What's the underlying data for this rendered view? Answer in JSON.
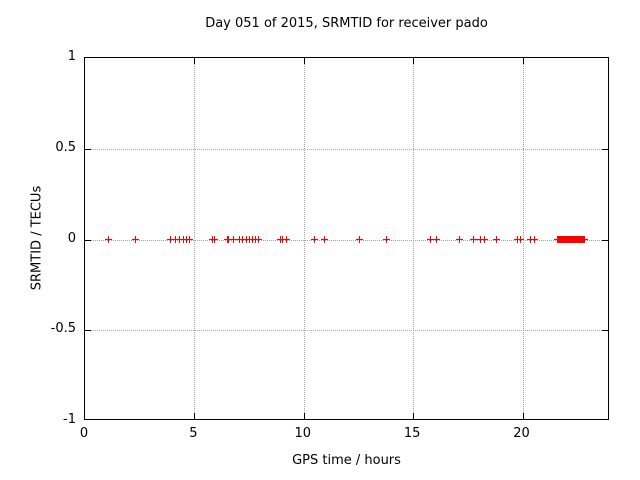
{
  "title": "Day 051 of 2015, SRMTID for receiver pado",
  "axes": {
    "xlabel": "GPS time / hours",
    "ylabel": "SRMTID / TECUs"
  },
  "chart_data": {
    "type": "scatter",
    "title": "Day 051 of 2015, SRMTID for receiver pado",
    "xlabel": "GPS time / hours",
    "ylabel": "SRMTID / TECUs",
    "xlim": [
      0,
      24
    ],
    "ylim": [
      -1,
      1
    ],
    "xticks": [
      0,
      5,
      10,
      15,
      20
    ],
    "yticks": [
      1,
      0.5,
      0,
      -0.5,
      -1
    ],
    "grid": true,
    "legend": "none",
    "marker": "plus",
    "marker_color": "#ff0000",
    "grid_color": "#a3a3a3",
    "border_color": "#000000",
    "series": [
      {
        "name": "SRMTID",
        "y_constant": 0,
        "x": [
          1.07,
          2.3,
          3.93,
          4.15,
          4.34,
          4.5,
          4.62,
          4.78,
          5.85,
          5.93,
          6.5,
          6.58,
          6.81,
          7.08,
          7.22,
          7.36,
          7.5,
          7.64,
          7.78,
          7.92,
          8.93,
          9.02,
          9.2,
          10.5,
          10.95,
          12.55,
          13.8,
          15.8,
          16.05,
          17.1,
          17.78,
          18.08,
          18.25,
          18.8,
          19.78,
          19.92,
          20.38,
          20.53
        ],
        "dense_run": {
          "start": 21.6,
          "end": 22.82,
          "step": 0.02
        }
      }
    ]
  }
}
